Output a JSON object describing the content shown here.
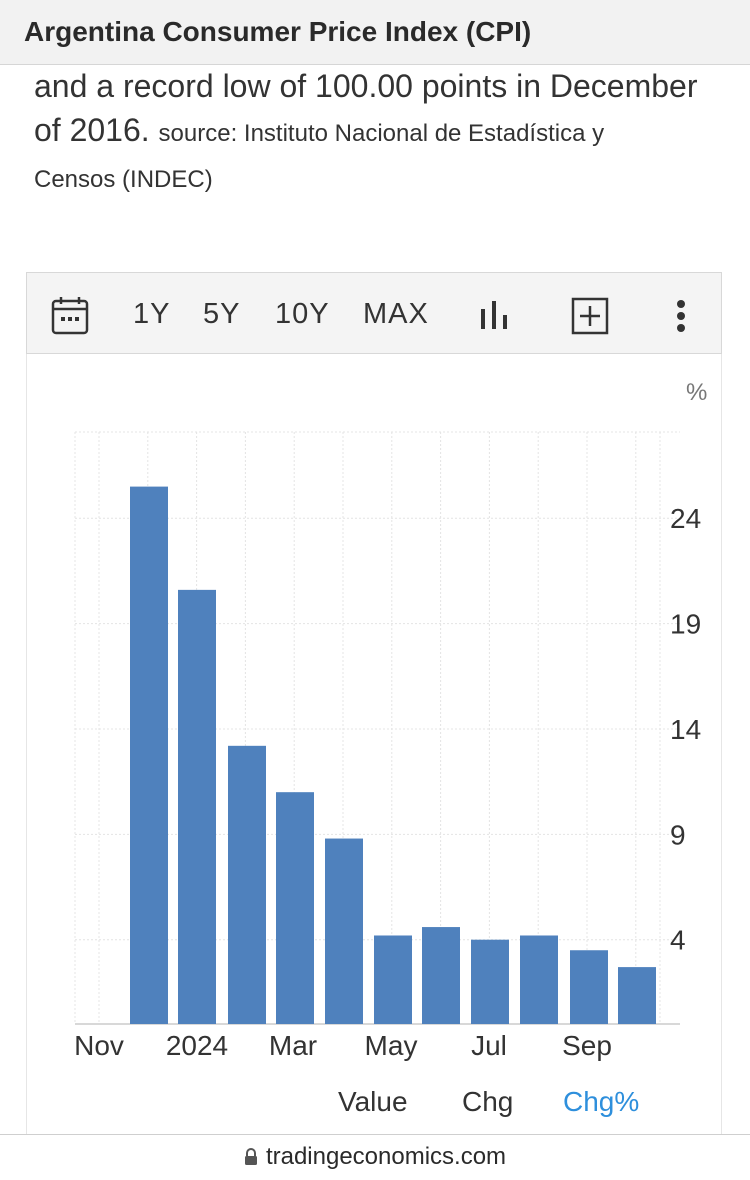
{
  "header": {
    "title": "Argentina Consumer Price Index (CPI)"
  },
  "description": {
    "line1": "and a record low of 100.00 points in December",
    "line2_big": "of 2016.",
    "line2_small": "source: Instituto Nacional de Estadística y",
    "line3": "Censos (INDEC)"
  },
  "toolbar": {
    "icons": {
      "calendar": "calendar-icon",
      "chart": "bar-chart-icon",
      "add": "plus-square-icon",
      "more": "more-vertical-icon"
    },
    "ranges": [
      "1Y",
      "5Y",
      "10Y",
      "MAX"
    ]
  },
  "chart_data": {
    "type": "bar",
    "unit_label": "%",
    "color": "#4f81bd",
    "x": [
      "2023-11",
      "2023-12",
      "2024-01",
      "2024-02",
      "2024-03",
      "2024-04",
      "2024-05",
      "2024-06",
      "2024-07",
      "2024-08",
      "2024-09",
      "2024-10"
    ],
    "values": [
      null,
      25.5,
      20.6,
      13.2,
      11.0,
      8.8,
      4.2,
      4.6,
      4.0,
      4.2,
      3.5,
      2.7
    ],
    "x_tick_labels": [
      "Nov",
      "2024",
      "Mar",
      "May",
      "Jul",
      "Sep"
    ],
    "y_ticks": [
      4,
      9,
      14,
      19,
      24
    ],
    "ylim": [
      0,
      28
    ],
    "grid": true,
    "y_axis_side": "right"
  },
  "tabs": [
    "Value",
    "Chg",
    "Chg%"
  ],
  "active_tab": "Chg%",
  "footer": {
    "url": "tradingeconomics.com"
  },
  "colors": {
    "accent": "#2e8fdc",
    "bar": "#4f81bd"
  }
}
